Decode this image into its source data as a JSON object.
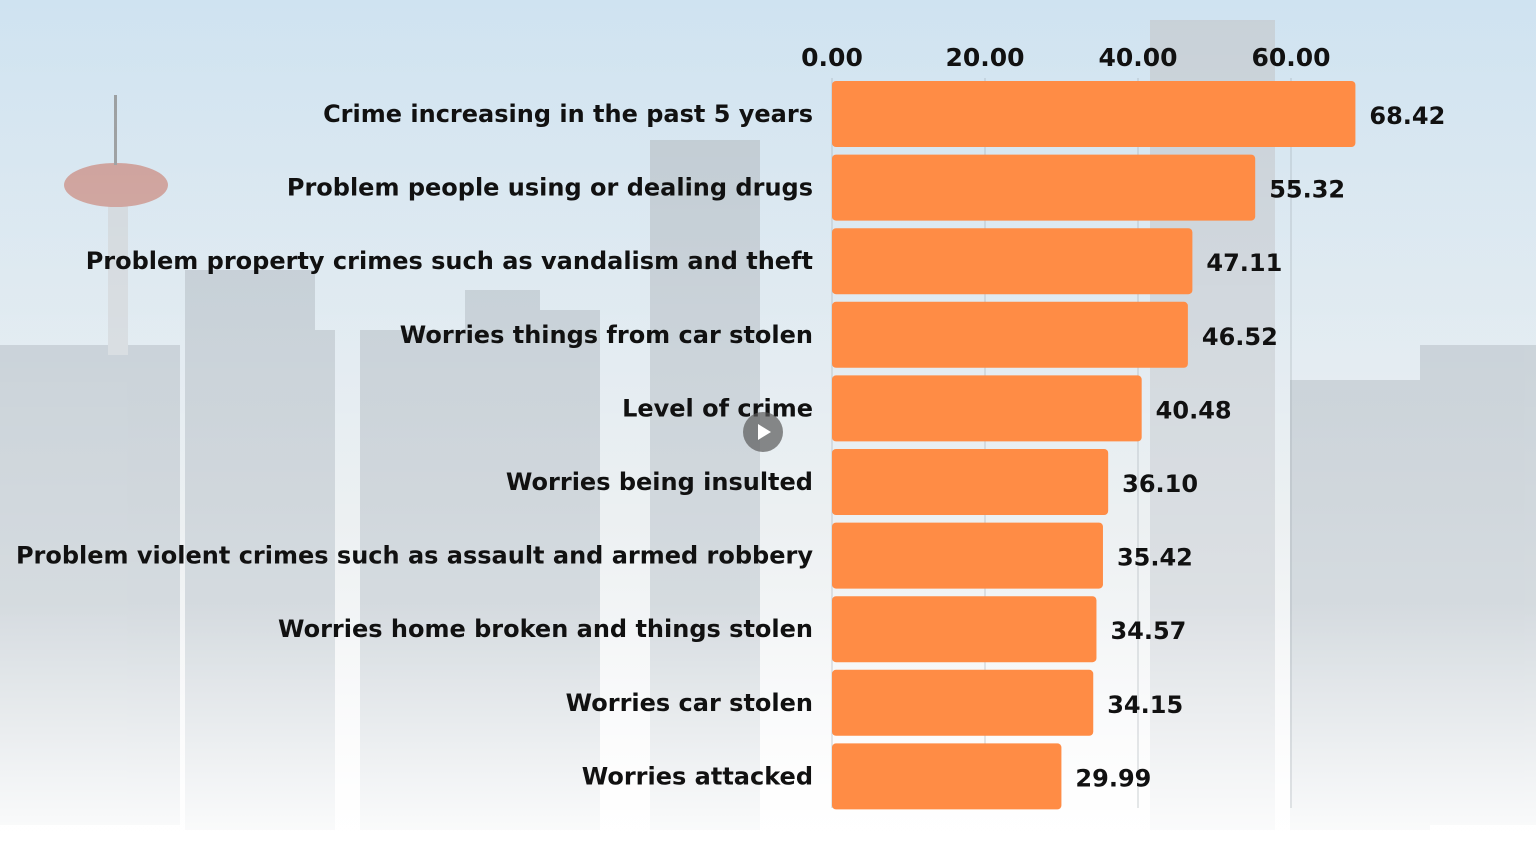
{
  "chart_data": {
    "type": "bar",
    "orientation": "horizontal",
    "title": "",
    "xlabel": "",
    "ylabel": "",
    "xlim": [
      0,
      70
    ],
    "ticks": [
      "0.00",
      "20.00",
      "40.00",
      "60.00"
    ],
    "tick_values": [
      0,
      20,
      40,
      60
    ],
    "axis_position": "top",
    "grid": true,
    "bar_color": "#FF8C45",
    "categories": [
      "Crime increasing in the past 5 years",
      "Problem people using or dealing drugs",
      "Problem property crimes such as vandalism and theft",
      "Worries things from car stolen",
      "Level of crime",
      "Worries being insulted",
      "Problem violent crimes such as assault and armed robbery",
      "Worries home broken and things stolen",
      "Worries car stolen",
      "Worries attacked"
    ],
    "values": [
      68.42,
      55.32,
      47.11,
      46.52,
      40.48,
      36.1,
      35.42,
      34.57,
      34.15,
      29.99
    ],
    "value_labels": [
      "68.42",
      "55.32",
      "47.11",
      "46.52",
      "40.48",
      "36.10",
      "35.42",
      "34.57",
      "34.15",
      "29.99"
    ]
  },
  "overlay": {
    "icon": "play-icon"
  }
}
